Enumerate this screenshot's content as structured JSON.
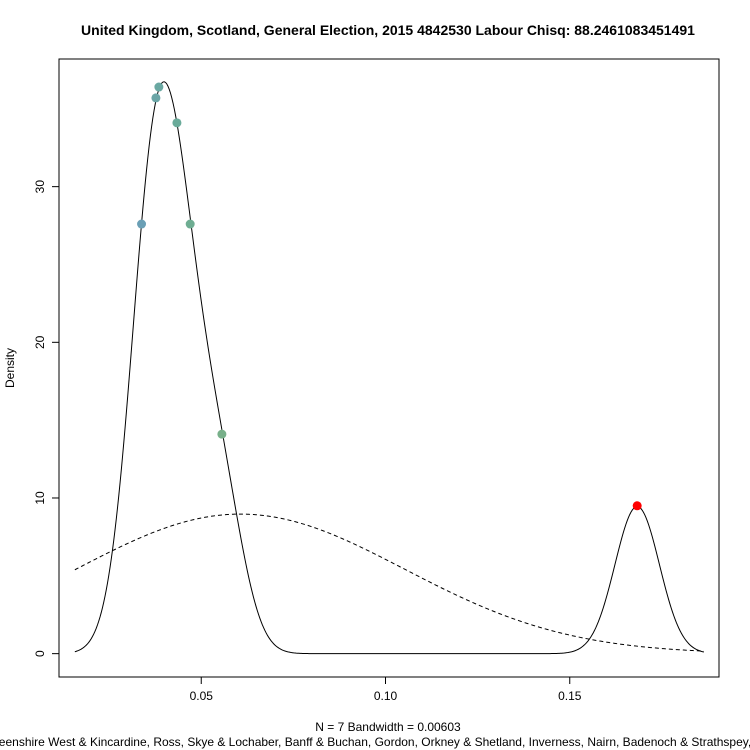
{
  "chart_data": {
    "type": "line",
    "title": "United Kingdom, Scotland, General Election, 2015 4842530 Labour Chisq: 88.2461083451491",
    "xlabel": "N = 7   Bandwidth = 0.00603",
    "caption": "rdeenshire West & Kincardine, Ross, Skye & Lochaber, Banff & Buchan, Gordon, Orkney & Shetland, Inverness, Nairn, Badenoch & Strathspey, A",
    "ylabel": "Density",
    "xlim": [
      0.0114,
      0.1905
    ],
    "ylim": [
      -1.5,
      38.2
    ],
    "x_ticks": [
      0.05,
      0.1,
      0.15
    ],
    "x_tick_labels": [
      "0.05",
      "0.10",
      "0.15"
    ],
    "y_ticks": [
      0,
      10,
      20,
      30
    ],
    "y_tick_labels": [
      "0",
      "10",
      "20",
      "30"
    ],
    "grid": false,
    "bandwidth": 0.00603,
    "series": [
      {
        "style": "solid",
        "values_from": "kde_of_points"
      },
      {
        "style": "dashed",
        "values_from": "normal_fit"
      }
    ],
    "points": [
      {
        "x": 0.0338,
        "y": 27.6,
        "color": "#6a9fb5"
      },
      {
        "x": 0.0377,
        "y": 35.7,
        "color": "#6aa5a6"
      },
      {
        "x": 0.0385,
        "y": 36.4,
        "color": "#6aa8a2"
      },
      {
        "x": 0.0434,
        "y": 34.1,
        "color": "#6aab9a"
      },
      {
        "x": 0.047,
        "y": 27.6,
        "color": "#6ead92"
      },
      {
        "x": 0.0556,
        "y": 14.1,
        "color": "#78b08a"
      },
      {
        "x": 0.1683,
        "y": 9.5,
        "color": "#ff0000"
      }
    ],
    "kde_range": [
      0.0157,
      0.1864
    ],
    "normal_fit": {
      "mean": 0.0606,
      "sd": 0.0445,
      "range": [
        0.0157,
        0.1864
      ]
    }
  }
}
